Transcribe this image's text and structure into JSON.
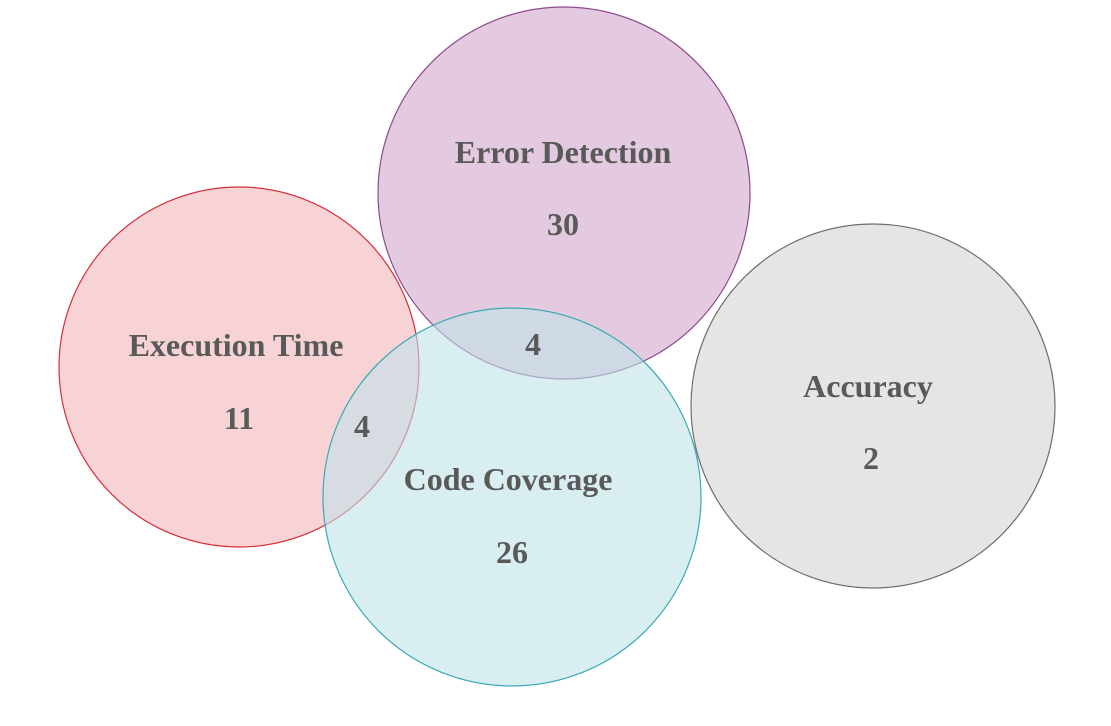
{
  "sets": [
    {
      "name": "Execution Time",
      "size": "11",
      "fill": "#f4b6bb",
      "stroke": "#d62e3a"
    },
    {
      "name": "Error Detection",
      "size": "30",
      "fill": "#d2a6cc",
      "stroke": "#8e4a8e"
    },
    {
      "name": "Code Coverage",
      "size": "26",
      "fill": "#bfe3e8",
      "stroke": "#3aa9b5"
    },
    {
      "name": "Accuracy",
      "size": "2",
      "fill": "#d4d4d4",
      "stroke": "#6e6e6e"
    }
  ],
  "intersections": [
    {
      "sets": [
        "Execution Time",
        "Code Coverage"
      ],
      "size": "4"
    },
    {
      "sets": [
        "Error Detection",
        "Code Coverage"
      ],
      "size": "4"
    }
  ]
}
